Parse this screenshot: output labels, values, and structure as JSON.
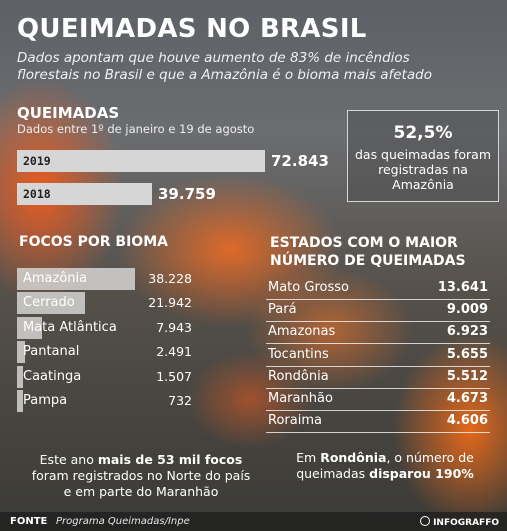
{
  "header": {
    "title": "QUEIMADAS NO BRASIL",
    "subtitle": "Dados apontam que houve aumento de 83% de incêndios florestais no Brasil e que a Amazônia é o bioma mais afetado"
  },
  "queimadas": {
    "heading": "QUEIMADAS",
    "period": "Dados entre 1º de janeiro e 19 de agosto"
  },
  "callout": {
    "percent": "52,5%",
    "text": "das queimadas foram registradas na Amazônia"
  },
  "bioma": {
    "heading": "FOCOS POR BIOMA"
  },
  "estados": {
    "heading": "ESTADOS COM O MAIOR NÚMERO DE QUEIMADAS"
  },
  "notes": {
    "left_pre": "Este ano ",
    "left_bold": "mais de 53 mil focos",
    "left_post": " foram registrados no Norte do país e em parte do Maranhão",
    "right_pre": "Em ",
    "right_bold1": "Rondônia",
    "right_mid": ", o número de queimadas ",
    "right_bold2": "disparou 190%"
  },
  "footer": {
    "fonte_label": "FONTE",
    "fonte_text": "Programa Queimadas/Inpe",
    "credit": "INFOGRAFFO"
  },
  "chart_data": [
    {
      "type": "bar",
      "categories": [
        "2019",
        "2018"
      ],
      "values": [
        72843,
        39759
      ],
      "value_labels": [
        "72.843",
        "39.759"
      ]
    },
    {
      "type": "bar",
      "categories": [
        "Amazônia",
        "Cerrado",
        "Mata Atlântica",
        "Pantanal",
        "Caatinga",
        "Pampa"
      ],
      "values": [
        38228,
        21942,
        7943,
        2491,
        1507,
        732
      ],
      "value_labels": [
        "38.228",
        "21.942",
        "7.943",
        "2.491",
        "1.507",
        "732"
      ]
    },
    {
      "type": "table",
      "categories": [
        "Mato Grosso",
        "Pará",
        "Amazonas",
        "Tocantins",
        "Rondônia",
        "Maranhão",
        "Roraima"
      ],
      "values": [
        13641,
        9009,
        6923,
        5655,
        5512,
        4673,
        4606
      ],
      "value_labels": [
        "13.641",
        "9.009",
        "6.923",
        "5.655",
        "5.512",
        "4.673",
        "4.606"
      ]
    }
  ]
}
